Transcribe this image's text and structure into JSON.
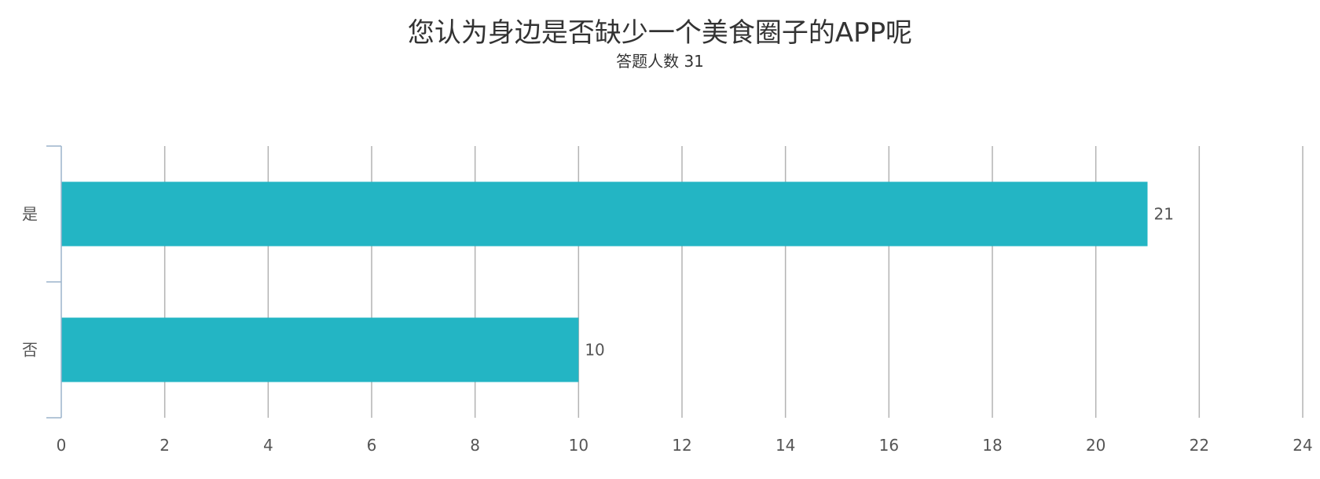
{
  "chart_data": {
    "type": "bar",
    "orientation": "horizontal",
    "title": "您认为身边是否缺少一个美食圈子的APP呢",
    "subtitle": "答题人数 31",
    "categories": [
      "是",
      "否"
    ],
    "values": [
      21,
      10
    ],
    "data_labels": [
      "21",
      "10"
    ],
    "xlim": [
      0,
      24
    ],
    "x_ticks": [
      0,
      2,
      4,
      6,
      8,
      10,
      12,
      14,
      16,
      18,
      20,
      22,
      24
    ],
    "x_tick_labels": [
      "0",
      "2",
      "4",
      "6",
      "8",
      "10",
      "12",
      "14",
      "16",
      "18",
      "20",
      "22",
      "24"
    ],
    "xlabel": "",
    "ylabel": "",
    "grid": "vertical",
    "legend": "none"
  },
  "colors": {
    "bar": "#23b5c4",
    "grid": "#b3b3b3",
    "axis": "#9cb3cc",
    "text": "#555555",
    "title": "#333333"
  }
}
